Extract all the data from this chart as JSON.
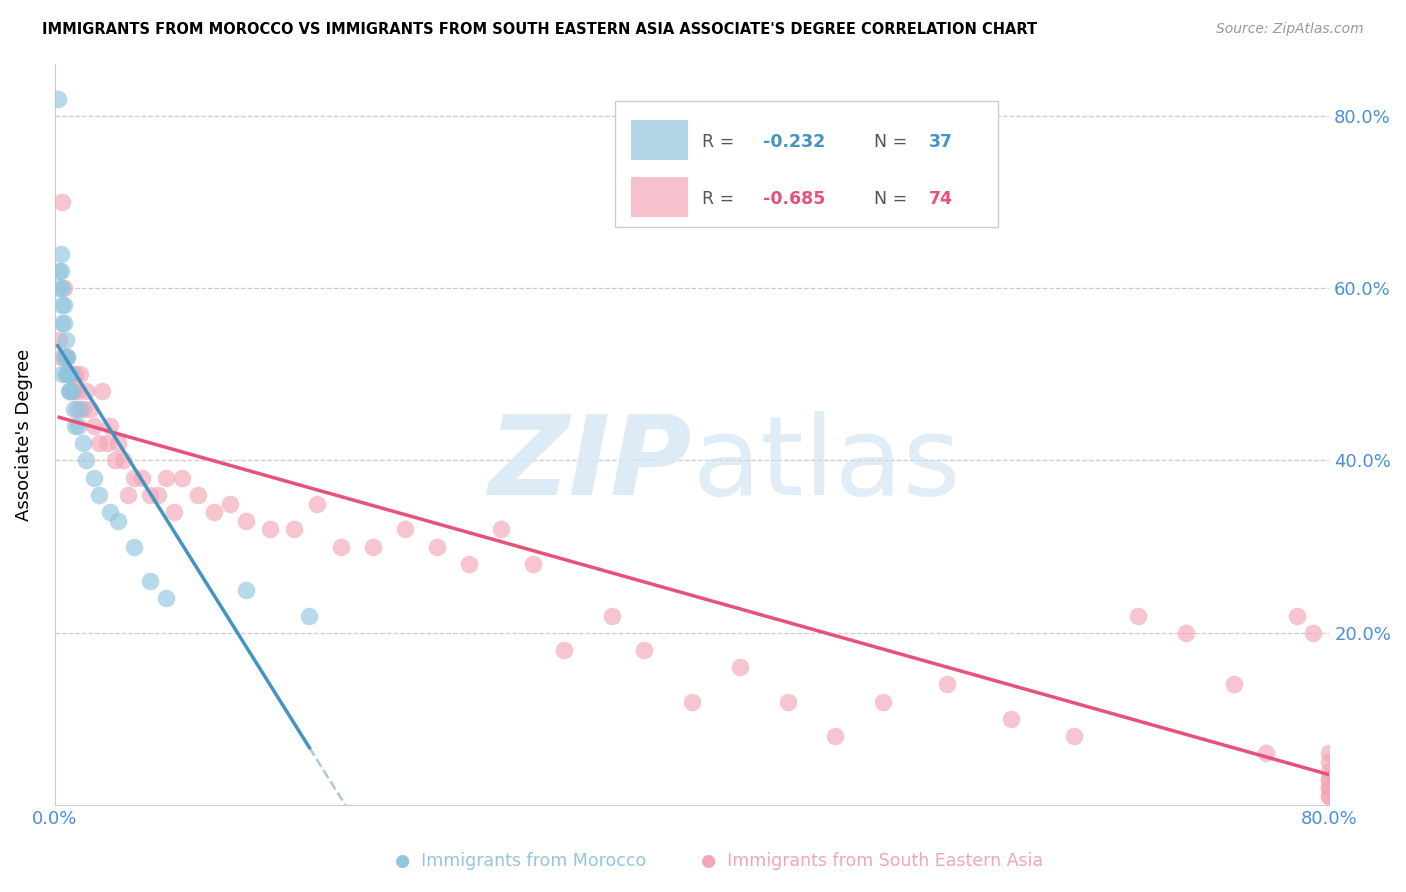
{
  "title": "IMMIGRANTS FROM MOROCCO VS IMMIGRANTS FROM SOUTH EASTERN ASIA ASSOCIATE'S DEGREE CORRELATION CHART",
  "source": "Source: ZipAtlas.com",
  "ylabel": "Associate's Degree",
  "morocco_R": -0.232,
  "morocco_N": 37,
  "sea_R": -0.685,
  "sea_N": 74,
  "morocco_color": "#92c5de",
  "sea_color": "#f4a6b8",
  "morocco_line_color": "#4393c3",
  "sea_line_color": "#e8527a",
  "dashed_line_color": "#aec7d8",
  "xlim": [
    0.0,
    0.8
  ],
  "ylim": [
    0.0,
    0.86
  ],
  "morocco_x": [
    0.002,
    0.003,
    0.003,
    0.004,
    0.004,
    0.005,
    0.005,
    0.005,
    0.005,
    0.006,
    0.006,
    0.006,
    0.007,
    0.007,
    0.007,
    0.008,
    0.008,
    0.009,
    0.009,
    0.01,
    0.01,
    0.011,
    0.012,
    0.013,
    0.015,
    0.016,
    0.018,
    0.02,
    0.025,
    0.028,
    0.035,
    0.04,
    0.05,
    0.06,
    0.07,
    0.12,
    0.16
  ],
  "morocco_y": [
    0.82,
    0.62,
    0.6,
    0.64,
    0.62,
    0.6,
    0.58,
    0.56,
    0.5,
    0.58,
    0.56,
    0.52,
    0.54,
    0.52,
    0.5,
    0.52,
    0.5,
    0.5,
    0.48,
    0.5,
    0.48,
    0.48,
    0.46,
    0.44,
    0.44,
    0.46,
    0.42,
    0.4,
    0.38,
    0.36,
    0.34,
    0.33,
    0.3,
    0.26,
    0.24,
    0.25,
    0.22
  ],
  "sea_x": [
    0.003,
    0.004,
    0.005,
    0.006,
    0.007,
    0.008,
    0.008,
    0.009,
    0.01,
    0.011,
    0.012,
    0.013,
    0.014,
    0.015,
    0.016,
    0.018,
    0.02,
    0.022,
    0.025,
    0.028,
    0.03,
    0.033,
    0.035,
    0.038,
    0.04,
    0.043,
    0.046,
    0.05,
    0.055,
    0.06,
    0.065,
    0.07,
    0.075,
    0.08,
    0.09,
    0.1,
    0.11,
    0.12,
    0.135,
    0.15,
    0.165,
    0.18,
    0.2,
    0.22,
    0.24,
    0.26,
    0.28,
    0.3,
    0.32,
    0.35,
    0.37,
    0.4,
    0.43,
    0.46,
    0.49,
    0.52,
    0.56,
    0.6,
    0.64,
    0.68,
    0.71,
    0.74,
    0.76,
    0.78,
    0.79,
    0.8,
    0.8,
    0.8,
    0.8,
    0.8,
    0.8,
    0.8,
    0.8,
    0.8
  ],
  "sea_y": [
    0.54,
    0.52,
    0.7,
    0.6,
    0.52,
    0.52,
    0.5,
    0.5,
    0.48,
    0.5,
    0.48,
    0.5,
    0.46,
    0.48,
    0.5,
    0.46,
    0.48,
    0.46,
    0.44,
    0.42,
    0.48,
    0.42,
    0.44,
    0.4,
    0.42,
    0.4,
    0.36,
    0.38,
    0.38,
    0.36,
    0.36,
    0.38,
    0.34,
    0.38,
    0.36,
    0.34,
    0.35,
    0.33,
    0.32,
    0.32,
    0.35,
    0.3,
    0.3,
    0.32,
    0.3,
    0.28,
    0.32,
    0.28,
    0.18,
    0.22,
    0.18,
    0.12,
    0.16,
    0.12,
    0.08,
    0.12,
    0.14,
    0.1,
    0.08,
    0.22,
    0.2,
    0.14,
    0.06,
    0.22,
    0.2,
    0.06,
    0.05,
    0.04,
    0.03,
    0.02,
    0.01,
    0.03,
    0.02,
    0.01
  ]
}
